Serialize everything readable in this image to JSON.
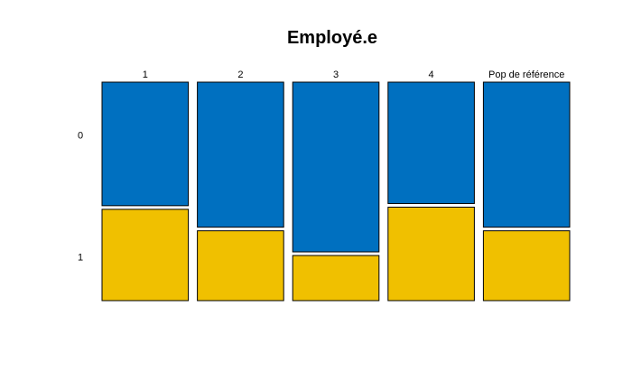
{
  "chart_data": {
    "type": "mosaic",
    "title": "Employé.e",
    "columns": [
      "1",
      "2",
      "3",
      "4",
      "Pop de référence"
    ],
    "rows": [
      "0",
      "1"
    ],
    "proportions": {
      "0": [
        0.575,
        0.675,
        0.79,
        0.565,
        0.675
      ],
      "1": [
        0.425,
        0.325,
        0.21,
        0.435,
        0.325
      ]
    },
    "colors": {
      "0": "#0070c0",
      "1": "#f0c000"
    }
  }
}
